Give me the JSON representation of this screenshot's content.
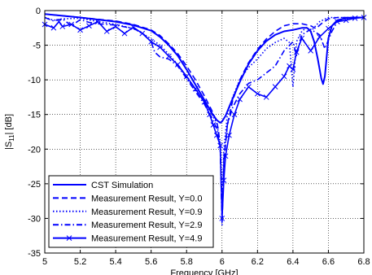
{
  "chart_data": {
    "type": "line",
    "xlabel": "Frequency [GHz]",
    "ylabel_main": "|S",
    "ylabel_sub": "11",
    "ylabel_tail": "| [dB]",
    "xlim": [
      5,
      6.8
    ],
    "ylim": [
      -35,
      0
    ],
    "xticks": [
      5,
      5.2,
      5.4,
      5.6,
      5.8,
      6,
      6.2,
      6.4,
      6.6,
      6.8
    ],
    "xtick_labels": [
      "5",
      "5.2",
      "5.4",
      "5.6",
      "5.8",
      "6",
      "6.2",
      "6.4",
      "6.6",
      "6.8"
    ],
    "yticks": [
      0,
      -5,
      -10,
      -15,
      -20,
      -25,
      -30,
      -35
    ],
    "ytick_labels": [
      "0",
      "-5",
      "-10",
      "-15",
      "-20",
      "-25",
      "-30",
      "-35"
    ],
    "grid": true,
    "grid_style": "dotted",
    "legend_position": "bottom-left",
    "color": "#0000ff",
    "series": [
      {
        "name": "CST Simulation",
        "style": "solid",
        "marker": "none",
        "x": [
          5.0,
          5.2,
          5.4,
          5.5,
          5.6,
          5.65,
          5.7,
          5.75,
          5.8,
          5.85,
          5.9,
          5.94,
          5.97,
          5.99,
          6.0,
          6.02,
          6.05,
          6.1,
          6.15,
          6.2,
          6.25,
          6.3,
          6.35,
          6.4,
          6.45,
          6.48,
          6.5,
          6.52,
          6.54,
          6.56,
          6.57,
          6.58,
          6.6,
          6.62,
          6.65,
          6.7,
          6.75,
          6.8
        ],
        "y": [
          -0.5,
          -1.0,
          -1.6,
          -2.1,
          -2.9,
          -3.8,
          -5.0,
          -6.5,
          -8.5,
          -10.7,
          -12.9,
          -14.7,
          -15.8,
          -16.2,
          -16.0,
          -15.2,
          -13.3,
          -10.3,
          -7.7,
          -5.8,
          -4.4,
          -3.5,
          -3.0,
          -2.8,
          -2.5,
          -2.5,
          -3.0,
          -4.5,
          -7.0,
          -9.8,
          -10.6,
          -9.5,
          -4.0,
          -2.2,
          -1.4,
          -1.1,
          -1.0,
          -1.0
        ]
      },
      {
        "name": "Measurement Result, Y=0.0",
        "style": "dashed",
        "marker": "none",
        "x": [
          5.0,
          5.2,
          5.4,
          5.5,
          5.6,
          5.65,
          5.7,
          5.75,
          5.8,
          5.85,
          5.9,
          5.94,
          5.97,
          5.98,
          5.99,
          6.0,
          6.01,
          6.03,
          6.06,
          6.1,
          6.15,
          6.2,
          6.25,
          6.3,
          6.35,
          6.4,
          6.45,
          6.5,
          6.53,
          6.56,
          6.6,
          6.65,
          6.7,
          6.75,
          6.8
        ],
        "y": [
          -0.5,
          -1.0,
          -1.5,
          -2.0,
          -2.8,
          -3.6,
          -4.8,
          -6.2,
          -8.0,
          -10.0,
          -12.3,
          -14.3,
          -16.0,
          -17.3,
          -20.0,
          -29.8,
          -22.0,
          -16.5,
          -13.0,
          -10.0,
          -7.5,
          -5.6,
          -4.1,
          -3.0,
          -2.2,
          -1.9,
          -1.9,
          -2.2,
          -2.6,
          -1.9,
          -1.2,
          -1.0,
          -1.0,
          -1.0,
          -1.0
        ]
      },
      {
        "name": "Measurement Result, Y=0.9",
        "style": "dotted",
        "marker": "none",
        "x": [
          5.0,
          5.05,
          5.1,
          5.2,
          5.3,
          5.4,
          5.5,
          5.55,
          5.6,
          5.65,
          5.7,
          5.75,
          5.8,
          5.85,
          5.9,
          5.94,
          5.97,
          5.99,
          6.0,
          6.01,
          6.03,
          6.06,
          6.1,
          6.15,
          6.2,
          6.25,
          6.3,
          6.35,
          6.38,
          6.4,
          6.42,
          6.45,
          6.48,
          6.5,
          6.55,
          6.6,
          6.65,
          6.7,
          6.75,
          6.8
        ],
        "y": [
          -1.0,
          -1.4,
          -1.2,
          -1.1,
          -1.6,
          -2.0,
          -2.6,
          -3.3,
          -4.1,
          -5.0,
          -6.3,
          -7.8,
          -9.7,
          -11.4,
          -13.2,
          -14.8,
          -16.3,
          -19.0,
          -28.7,
          -20.0,
          -15.0,
          -12.5,
          -10.0,
          -8.2,
          -7.0,
          -5.5,
          -4.6,
          -4.0,
          -4.6,
          -11.0,
          -4.5,
          -3.0,
          -2.4,
          -3.0,
          -1.6,
          -1.0,
          -1.0,
          -1.0,
          -1.0,
          -1.0
        ]
      },
      {
        "name": "Measurement Result, Y=2.9",
        "style": "dashdot",
        "marker": "none",
        "x": [
          5.0,
          5.05,
          5.1,
          5.15,
          5.2,
          5.25,
          5.3,
          5.4,
          5.5,
          5.55,
          5.6,
          5.62,
          5.65,
          5.7,
          5.75,
          5.8,
          5.85,
          5.9,
          5.94,
          5.97,
          5.99,
          6.0,
          6.01,
          6.03,
          6.06,
          6.1,
          6.15,
          6.2,
          6.25,
          6.3,
          6.35,
          6.4,
          6.42,
          6.45,
          6.5,
          6.55,
          6.58,
          6.62,
          6.65,
          6.7,
          6.75,
          6.8
        ],
        "y": [
          -1.0,
          -1.5,
          -1.2,
          -2.2,
          -1.3,
          -1.7,
          -1.9,
          -2.1,
          -2.6,
          -3.2,
          -4.5,
          -6.0,
          -6.7,
          -7.0,
          -8.0,
          -9.8,
          -11.7,
          -13.5,
          -15.4,
          -17.0,
          -20.0,
          -31.0,
          -21.5,
          -16.5,
          -14.0,
          -12.0,
          -10.5,
          -10.0,
          -9.0,
          -8.0,
          -5.8,
          -4.5,
          -6.5,
          -3.5,
          -2.7,
          -3.5,
          -5.5,
          -3.0,
          -1.6,
          -1.0,
          -1.0,
          -1.0
        ]
      },
      {
        "name": "Measurement Result, Y=4.9",
        "style": "solid",
        "marker": "x",
        "x": [
          5.0,
          5.05,
          5.08,
          5.1,
          5.15,
          5.2,
          5.25,
          5.3,
          5.35,
          5.4,
          5.45,
          5.5,
          5.55,
          5.6,
          5.65,
          5.7,
          5.75,
          5.8,
          5.85,
          5.9,
          5.93,
          5.95,
          5.97,
          5.99,
          6.0,
          6.01,
          6.02,
          6.04,
          6.07,
          6.1,
          6.15,
          6.2,
          6.25,
          6.3,
          6.35,
          6.38,
          6.4,
          6.42,
          6.45,
          6.5,
          6.55,
          6.6,
          6.65,
          6.7,
          6.75,
          6.8
        ],
        "y": [
          -2.0,
          -2.5,
          -1.6,
          -2.3,
          -2.0,
          -2.8,
          -2.2,
          -1.6,
          -3.0,
          -2.3,
          -3.3,
          -2.4,
          -3.3,
          -4.5,
          -5.3,
          -6.6,
          -7.8,
          -9.5,
          -11.3,
          -13.2,
          -15.0,
          -16.5,
          -18.0,
          -19.5,
          -30.0,
          -24.5,
          -21.0,
          -18.0,
          -15.0,
          -12.8,
          -11.0,
          -12.0,
          -12.5,
          -11.0,
          -9.5,
          -8.0,
          -8.5,
          -6.0,
          -4.0,
          -5.8,
          -3.8,
          -2.6,
          -1.6,
          -1.4,
          -1.1,
          -1.0
        ]
      }
    ]
  }
}
